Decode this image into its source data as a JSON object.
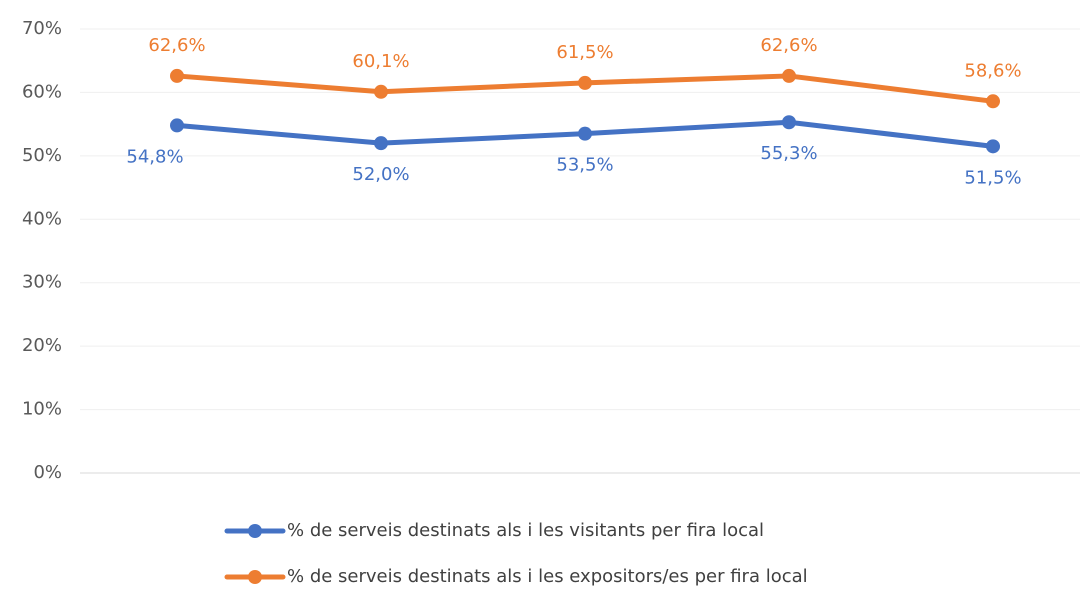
{
  "chart_data": {
    "type": "line",
    "categories": [
      null,
      null,
      null,
      null,
      null
    ],
    "series": [
      {
        "name": "% de serveis destinats als i les visitants per fira local",
        "color": "#4472c4",
        "values": [
          54.8,
          52.0,
          53.5,
          55.3,
          51.5
        ],
        "value_labels": [
          "54,8%",
          "52,0%",
          "53,5%",
          "55,3%",
          "51,5%"
        ]
      },
      {
        "name": "% de serveis destinats als i les expositors/es per fira local",
        "color": "#ed7d31",
        "values": [
          62.6,
          60.1,
          61.5,
          62.6,
          58.6
        ],
        "value_labels": [
          "62,6%",
          "60,1%",
          "61,5%",
          "62,6%",
          "58,6%"
        ]
      }
    ],
    "ylim": [
      0,
      70
    ],
    "yticks": [
      {
        "value": 0,
        "label": "0%"
      },
      {
        "value": 10,
        "label": "10%"
      },
      {
        "value": 20,
        "label": "20%"
      },
      {
        "value": 30,
        "label": "30%"
      },
      {
        "value": 40,
        "label": "40%"
      },
      {
        "value": 50,
        "label": "50%"
      },
      {
        "value": 60,
        "label": "60%"
      },
      {
        "value": 70,
        "label": "70%"
      }
    ],
    "grid": true,
    "legend": "bottom"
  }
}
